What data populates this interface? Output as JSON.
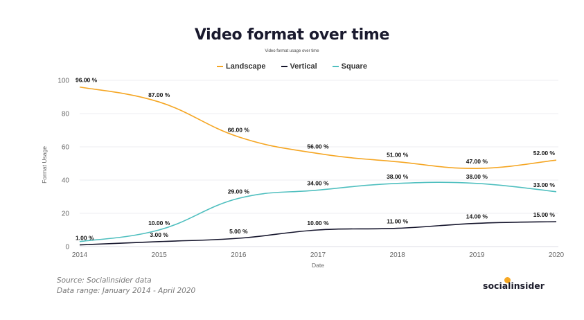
{
  "header": {
    "title": "Video format over time",
    "subtitle": "Video format usage over time"
  },
  "legend": [
    {
      "label": "Landscape",
      "color": "#f5a623"
    },
    {
      "label": "Vertical",
      "color": "#14142b"
    },
    {
      "label": "Square",
      "color": "#4fbfbf"
    }
  ],
  "axes": {
    "ylabel": "Format Usage",
    "xlabel": "Date",
    "yticks": [
      "0",
      "20",
      "40",
      "60",
      "80",
      "100"
    ],
    "xticks": [
      "2014",
      "2015",
      "2016",
      "2017",
      "2018",
      "2019",
      "2020"
    ]
  },
  "footer": {
    "source": "Source: Socialinsider data",
    "range": "Data range: January 2014 - April 2020",
    "logo": "socialinsider"
  },
  "chart_data": {
    "type": "line",
    "title": "Video format over time",
    "subtitle": "Video format usage over time",
    "xlabel": "Date",
    "ylabel": "Format Usage",
    "ylim": [
      0,
      100
    ],
    "grid": true,
    "legend_position": "top",
    "categories": [
      "2014",
      "2015",
      "2016",
      "2017",
      "2018",
      "2019",
      "2020"
    ],
    "series": [
      {
        "name": "Landscape",
        "color": "#f5a623",
        "values": [
          96,
          87,
          66,
          56,
          51,
          47,
          52
        ],
        "labels": [
          "96.00 %",
          "87.00 %",
          "66.00 %",
          "56.00 %",
          "51.00 %",
          "47.00 %",
          "52.00 %"
        ]
      },
      {
        "name": "Vertical",
        "color": "#14142b",
        "values": [
          1,
          3,
          5,
          10,
          11,
          14,
          15
        ],
        "labels": [
          "1.00 %",
          "3.00 %",
          "5.00 %",
          "10.00 %",
          "11.00 %",
          "14.00 %",
          "15.00 %"
        ]
      },
      {
        "name": "Square",
        "color": "#4fbfbf",
        "values": [
          3,
          10,
          29,
          34,
          38,
          38,
          33
        ],
        "labels": [
          "",
          "10.00 %",
          "29.00 %",
          "34.00 %",
          "38.00 %",
          "38.00 %",
          "33.00 %"
        ]
      }
    ]
  }
}
